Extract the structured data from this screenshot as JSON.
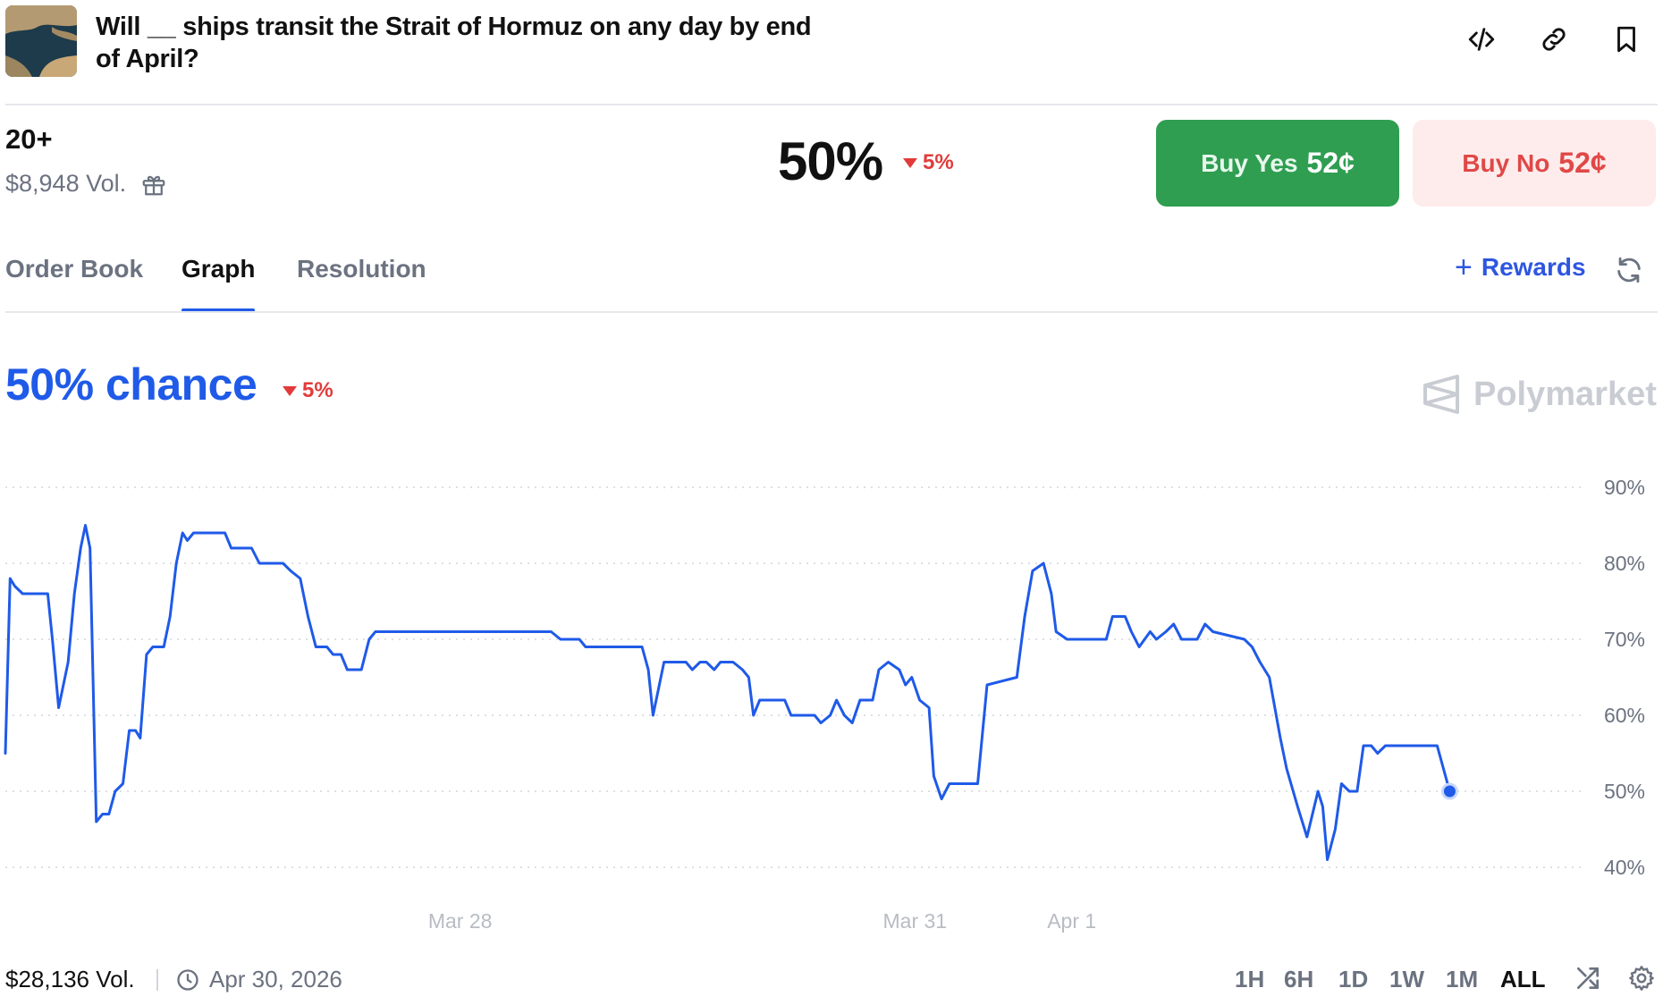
{
  "header": {
    "title": "Will __ ships transit the Strait of Hormuz on any day by end of April?",
    "icons": [
      "embed-code-icon",
      "link-icon",
      "bookmark-icon"
    ]
  },
  "market": {
    "outcome_label": "20+",
    "volume": "$8,948 Vol.",
    "probability": "50%",
    "change": "5%",
    "change_direction": "down",
    "buy_yes_label": "Buy Yes",
    "buy_yes_price": "52¢",
    "buy_no_label": "Buy No",
    "buy_no_price": "52¢"
  },
  "tabs": [
    {
      "label": "Order Book",
      "active": false
    },
    {
      "label": "Graph",
      "active": true
    },
    {
      "label": "Resolution",
      "active": false
    }
  ],
  "rewards_label": "Rewards",
  "chart_header": {
    "chance": "50% chance",
    "change": "5%",
    "watermark": "Polymarket"
  },
  "chart_data": {
    "type": "line",
    "title": "",
    "xlabel": "",
    "ylabel": "",
    "ylim": [
      0.35,
      0.95
    ],
    "y_ticks": [
      "90%",
      "80%",
      "70%",
      "60%",
      "50%",
      "40%"
    ],
    "y_tick_values": [
      0.9,
      0.8,
      0.7,
      0.6,
      0.5,
      0.4
    ],
    "x_ticks": [
      "Mar 28",
      "Mar 31",
      "Apr 1"
    ],
    "x_tick_values": [
      0.29,
      0.58,
      0.68
    ],
    "x_range": [
      0,
      1
    ],
    "grid": true,
    "line_color": "#1f5ae8",
    "series": [
      {
        "values": [
          [
            0.0,
            0.55
          ],
          [
            0.003,
            0.78
          ],
          [
            0.006,
            0.77
          ],
          [
            0.011,
            0.76
          ],
          [
            0.027,
            0.76
          ],
          [
            0.03,
            0.7
          ],
          [
            0.034,
            0.61
          ],
          [
            0.04,
            0.67
          ],
          [
            0.044,
            0.76
          ],
          [
            0.048,
            0.82
          ],
          [
            0.051,
            0.85
          ],
          [
            0.054,
            0.82
          ],
          [
            0.058,
            0.46
          ],
          [
            0.062,
            0.47
          ],
          [
            0.066,
            0.47
          ],
          [
            0.07,
            0.5
          ],
          [
            0.075,
            0.51
          ],
          [
            0.079,
            0.58
          ],
          [
            0.083,
            0.58
          ],
          [
            0.086,
            0.57
          ],
          [
            0.09,
            0.68
          ],
          [
            0.094,
            0.69
          ],
          [
            0.101,
            0.69
          ],
          [
            0.105,
            0.73
          ],
          [
            0.109,
            0.8
          ],
          [
            0.113,
            0.84
          ],
          [
            0.116,
            0.83
          ],
          [
            0.12,
            0.84
          ],
          [
            0.14,
            0.84
          ],
          [
            0.144,
            0.82
          ],
          [
            0.157,
            0.82
          ],
          [
            0.162,
            0.8
          ],
          [
            0.177,
            0.8
          ],
          [
            0.182,
            0.79
          ],
          [
            0.188,
            0.78
          ],
          [
            0.193,
            0.73
          ],
          [
            0.198,
            0.69
          ],
          [
            0.205,
            0.69
          ],
          [
            0.209,
            0.68
          ],
          [
            0.214,
            0.68
          ],
          [
            0.218,
            0.66
          ],
          [
            0.222,
            0.66
          ],
          [
            0.227,
            0.66
          ],
          [
            0.232,
            0.7
          ],
          [
            0.236,
            0.71
          ],
          [
            0.348,
            0.71
          ],
          [
            0.354,
            0.7
          ],
          [
            0.366,
            0.7
          ],
          [
            0.37,
            0.69
          ],
          [
            0.406,
            0.69
          ],
          [
            0.41,
            0.66
          ],
          [
            0.413,
            0.6
          ],
          [
            0.42,
            0.67
          ],
          [
            0.424,
            0.67
          ],
          [
            0.434,
            0.67
          ],
          [
            0.438,
            0.66
          ],
          [
            0.443,
            0.67
          ],
          [
            0.447,
            0.67
          ],
          [
            0.452,
            0.66
          ],
          [
            0.456,
            0.67
          ],
          [
            0.464,
            0.67
          ],
          [
            0.47,
            0.66
          ],
          [
            0.474,
            0.65
          ],
          [
            0.477,
            0.6
          ],
          [
            0.481,
            0.62
          ],
          [
            0.497,
            0.62
          ],
          [
            0.501,
            0.6
          ],
          [
            0.516,
            0.6
          ],
          [
            0.52,
            0.59
          ],
          [
            0.526,
            0.6
          ],
          [
            0.53,
            0.62
          ],
          [
            0.535,
            0.6
          ],
          [
            0.54,
            0.59
          ],
          [
            0.545,
            0.62
          ],
          [
            0.553,
            0.62
          ],
          [
            0.557,
            0.66
          ],
          [
            0.563,
            0.67
          ],
          [
            0.57,
            0.66
          ],
          [
            0.574,
            0.64
          ],
          [
            0.578,
            0.65
          ],
          [
            0.583,
            0.62
          ],
          [
            0.589,
            0.61
          ],
          [
            0.592,
            0.52
          ],
          [
            0.597,
            0.49
          ],
          [
            0.602,
            0.51
          ],
          [
            0.62,
            0.51
          ],
          [
            0.626,
            0.64
          ],
          [
            0.645,
            0.65
          ],
          [
            0.65,
            0.73
          ],
          [
            0.655,
            0.79
          ],
          [
            0.662,
            0.8
          ],
          [
            0.667,
            0.76
          ],
          [
            0.67,
            0.71
          ],
          [
            0.677,
            0.7
          ],
          [
            0.702,
            0.7
          ],
          [
            0.706,
            0.73
          ],
          [
            0.714,
            0.73
          ],
          [
            0.718,
            0.71
          ],
          [
            0.723,
            0.69
          ],
          [
            0.73,
            0.71
          ],
          [
            0.734,
            0.7
          ],
          [
            0.74,
            0.71
          ],
          [
            0.745,
            0.72
          ],
          [
            0.75,
            0.7
          ],
          [
            0.76,
            0.7
          ],
          [
            0.765,
            0.72
          ],
          [
            0.77,
            0.71
          ],
          [
            0.79,
            0.7
          ],
          [
            0.795,
            0.69
          ],
          [
            0.8,
            0.67
          ],
          [
            0.806,
            0.65
          ],
          [
            0.813,
            0.57
          ],
          [
            0.817,
            0.53
          ],
          [
            0.824,
            0.48
          ],
          [
            0.83,
            0.44
          ],
          [
            0.837,
            0.5
          ],
          [
            0.84,
            0.48
          ],
          [
            0.843,
            0.41
          ],
          [
            0.848,
            0.45
          ],
          [
            0.852,
            0.51
          ],
          [
            0.857,
            0.5
          ],
          [
            0.862,
            0.5
          ],
          [
            0.866,
            0.56
          ],
          [
            0.871,
            0.56
          ],
          [
            0.875,
            0.55
          ],
          [
            0.88,
            0.56
          ],
          [
            0.913,
            0.56
          ],
          [
            0.917,
            0.53
          ],
          [
            0.921,
            0.5
          ]
        ]
      }
    ],
    "last_value_marker": 0.5
  },
  "footer": {
    "volume": "$28,136 Vol.",
    "end_date": "Apr 30, 2026",
    "ranges": [
      {
        "label": "1H",
        "active": false
      },
      {
        "label": "6H",
        "active": false
      },
      {
        "label": "1D",
        "active": false
      },
      {
        "label": "1W",
        "active": false
      },
      {
        "label": "1M",
        "active": false
      },
      {
        "label": "ALL",
        "active": true
      }
    ]
  },
  "colors": {
    "accent_blue": "#1f5ae8",
    "yes_green": "#2f9e51",
    "no_red": "#e04848",
    "down_red": "#e23b3b"
  }
}
